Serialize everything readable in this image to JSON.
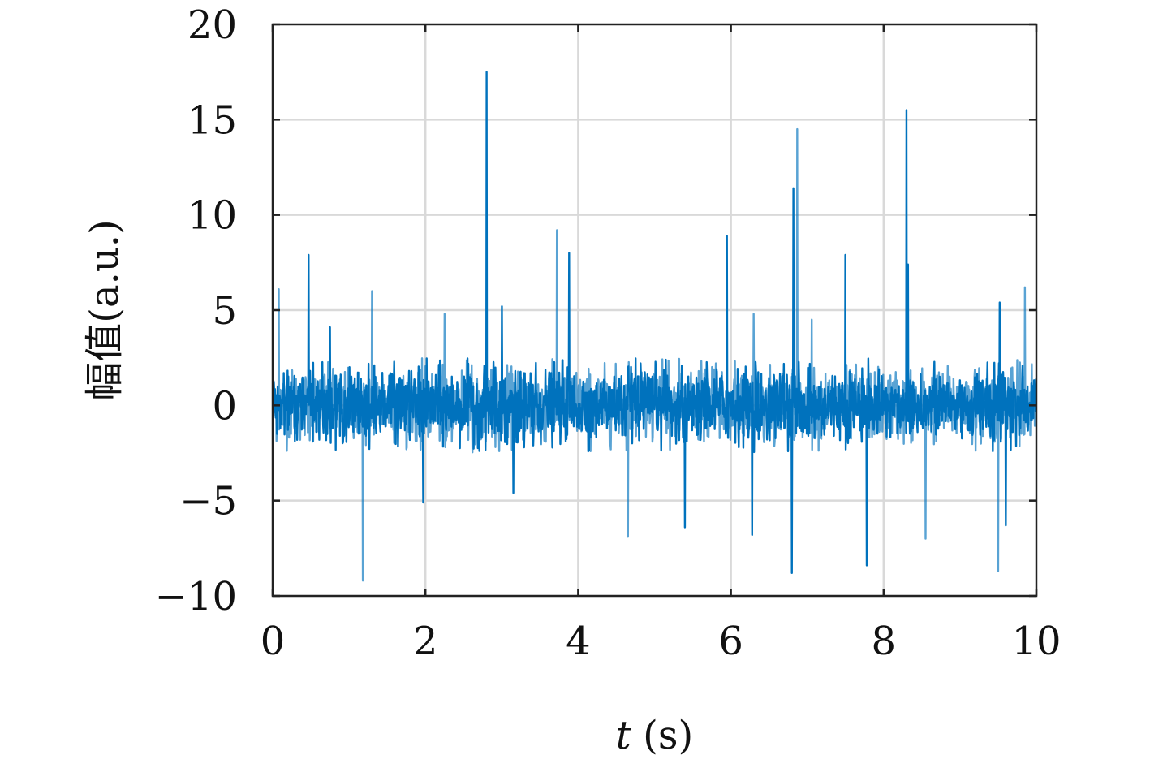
{
  "chart_data": {
    "type": "line",
    "xlabel_var": "t",
    "xlabel_unit": "(s)",
    "ylabel": "幅值(a.u.)",
    "xlim": [
      0,
      10
    ],
    "ylim": [
      -10,
      20
    ],
    "x_ticks": [
      "0",
      "2",
      "4",
      "6",
      "8",
      "10"
    ],
    "y_ticks": [
      "20",
      "15",
      "10",
      "5",
      "0",
      "−5",
      "−10"
    ],
    "grid": true,
    "noise_band": [
      -2.5,
      2.5
    ],
    "series": [
      {
        "color": "#0072BD",
        "opacity": 0.65,
        "spikes": [
          {
            "x": 0.08,
            "y": 6.1
          },
          {
            "x": 1.3,
            "y": 6.0
          },
          {
            "x": 1.18,
            "y": -9.2
          },
          {
            "x": 2.25,
            "y": 4.8
          },
          {
            "x": 3.72,
            "y": 9.2
          },
          {
            "x": 4.65,
            "y": -6.9
          },
          {
            "x": 6.3,
            "y": 4.8
          },
          {
            "x": 6.87,
            "y": 14.5
          },
          {
            "x": 7.06,
            "y": 4.5
          },
          {
            "x": 8.55,
            "y": -7.0
          },
          {
            "x": 9.5,
            "y": -8.7
          },
          {
            "x": 9.85,
            "y": 6.2
          }
        ]
      },
      {
        "color": "#0072BD",
        "opacity": 1.0,
        "spikes": [
          {
            "x": 0.47,
            "y": 7.9
          },
          {
            "x": 0.75,
            "y": 4.1
          },
          {
            "x": 1.97,
            "y": -5.1
          },
          {
            "x": 2.8,
            "y": 17.5
          },
          {
            "x": 3.0,
            "y": 5.2
          },
          {
            "x": 3.15,
            "y": -4.6
          },
          {
            "x": 3.88,
            "y": 8.0
          },
          {
            "x": 5.4,
            "y": -6.4
          },
          {
            "x": 5.95,
            "y": 8.9
          },
          {
            "x": 6.28,
            "y": -6.8
          },
          {
            "x": 6.82,
            "y": 11.4
          },
          {
            "x": 6.8,
            "y": -8.8
          },
          {
            "x": 7.5,
            "y": 7.9
          },
          {
            "x": 7.78,
            "y": -8.4
          },
          {
            "x": 8.3,
            "y": 15.5
          },
          {
            "x": 8.32,
            "y": 7.4
          },
          {
            "x": 9.52,
            "y": 5.4
          },
          {
            "x": 9.6,
            "y": -6.3
          }
        ]
      }
    ]
  }
}
